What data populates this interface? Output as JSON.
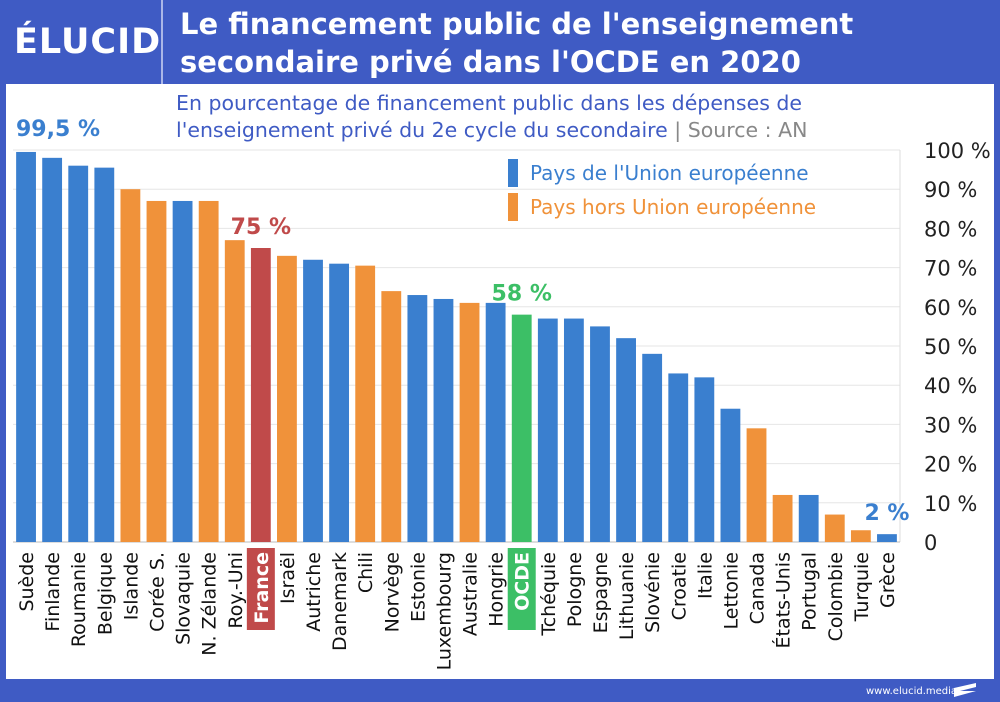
{
  "header": {
    "logo": "ÉLUCID",
    "title_line1": "Le financement public de l'enseignement",
    "title_line2": "secondaire privé dans l'OCDE en 2020"
  },
  "subtitle": {
    "line1": "En pourcentage de financement public dans les dépenses de",
    "line2": "l'enseignement privé du 2e cycle du secondaire",
    "separator": "|",
    "source": "Source : AN"
  },
  "footer": {
    "url": "www.elucid.media"
  },
  "colors": {
    "eu": "#3a7fcf",
    "non_eu": "#f0923a",
    "france": "#c04a4a",
    "oecd": "#3cbf66",
    "brand": "#3f5bc4"
  },
  "chart_data": {
    "type": "bar",
    "title": "Le financement public de l'enseignement secondaire privé dans l'OCDE en 2020",
    "subtitle": "En pourcentage de financement public dans les dépenses de l'enseignement privé du 2e cycle du secondaire | Source : AN",
    "xlabel": "",
    "ylabel": "",
    "ylim": [
      0,
      100
    ],
    "y_axis_position": "right",
    "yticks": [
      "0",
      "10 %",
      "20 %",
      "30 %",
      "40 %",
      "50 %",
      "60 %",
      "70 %",
      "80 %",
      "90 %",
      "100 %"
    ],
    "grid": true,
    "legend_position": "top-right",
    "legend": [
      {
        "label": "Pays de l'Union européenne",
        "group": "eu"
      },
      {
        "label": "Pays hors Union européenne",
        "group": "non_eu"
      }
    ],
    "categories": [
      "Suède",
      "Finlande",
      "Roumanie",
      "Belgique",
      "Islande",
      "Corée S.",
      "Slovaquie",
      "N. Zélande",
      "Roy.-Uni",
      "France",
      "Israël",
      "Autriche",
      "Danemark",
      "Chili",
      "Norvège",
      "Estonie",
      "Luxembourg",
      "Australie",
      "Hongrie",
      "OCDE",
      "Tchéquie",
      "Pologne",
      "Espagne",
      "Lithuanie",
      "Slovénie",
      "Croatie",
      "Italie",
      "Lettonie",
      "Canada",
      "États-Unis",
      "Portugal",
      "Colombie",
      "Turquie",
      "Grèce"
    ],
    "values": [
      99.5,
      98,
      96,
      95.5,
      90,
      87,
      87,
      87,
      77,
      75,
      73,
      72,
      71,
      70.5,
      64,
      63,
      62,
      61,
      61,
      58,
      57,
      57,
      55,
      52,
      48,
      43,
      42,
      34,
      29,
      12,
      12,
      7,
      3,
      2
    ],
    "groups": [
      "eu",
      "eu",
      "eu",
      "eu",
      "non_eu",
      "non_eu",
      "eu",
      "non_eu",
      "non_eu",
      "france",
      "non_eu",
      "eu",
      "eu",
      "non_eu",
      "non_eu",
      "eu",
      "eu",
      "non_eu",
      "eu",
      "oecd",
      "eu",
      "eu",
      "eu",
      "eu",
      "eu",
      "eu",
      "eu",
      "eu",
      "non_eu",
      "non_eu",
      "eu",
      "non_eu",
      "non_eu",
      "eu"
    ],
    "annotations": [
      {
        "category": "Suède",
        "text": "99,5 %",
        "group": "eu"
      },
      {
        "category": "France",
        "text": "75 %",
        "group": "france"
      },
      {
        "category": "OCDE",
        "text": "58 %",
        "group": "oecd"
      },
      {
        "category": "Grèce",
        "text": "2 %",
        "group": "eu"
      }
    ]
  }
}
